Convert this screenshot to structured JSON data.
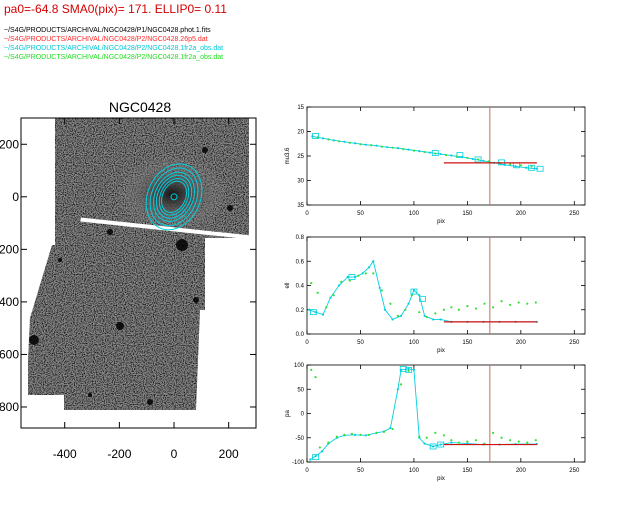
{
  "header": {
    "params": "pa0=-64.8  SMA0(pix)= 171.  ELLIP0= 0.11",
    "files": [
      {
        "text": "~/S4G/PRODUCTS/ARCHIVAL/NGC0428/P1/NGC0428.phot.1.fits",
        "color": "#000000"
      },
      {
        "text": "~/S4G/PRODUCTS/ARCHIVAL/NGC0428/P2/NGC0428.26p5.dat",
        "color": "#ff2a2a"
      },
      {
        "text": "~/S4G/PRODUCTS/ARCHIVAL/NGC0428/P2/NGC0428.1fr2a_obs.dat",
        "color": "#00c8d8"
      },
      {
        "text": "~/S4G/PRODUCTS/ARCHIVAL/NGC0428/P2/NGC0428.1fr2a_obs.dat",
        "color": "#22dd22"
      }
    ]
  },
  "colors": {
    "cyan": "#00d0e0",
    "green": "#33e033",
    "red": "#d01010",
    "vline": "#c87060",
    "axis": "#000000"
  },
  "chart_data": [
    {
      "type": "image",
      "title": "NGC0428",
      "xlim": [
        -560,
        300
      ],
      "ylim": [
        -880,
        300
      ],
      "x_ticks": [
        -400,
        -200,
        0,
        200
      ],
      "y_ticks": [
        200,
        0,
        -200,
        -400,
        -600,
        -800
      ],
      "y_tick_labels": [
        "200",
        "0",
        "200",
        "400",
        "600",
        "800"
      ],
      "isophote_contours": [
        {
          "a": 60,
          "b": 42
        },
        {
          "a": 70,
          "b": 50
        },
        {
          "a": 82,
          "b": 60
        },
        {
          "a": 94,
          "b": 70
        },
        {
          "a": 110,
          "b": 82
        },
        {
          "a": 125,
          "b": 96
        }
      ],
      "isophote_pa_deg": -65
    },
    {
      "type": "scatter",
      "ylabel": "mu3.6",
      "xlabel": "pix",
      "xlim": [
        0,
        260
      ],
      "ylim": [
        35,
        15
      ],
      "x_ticks": [
        0,
        50,
        100,
        150,
        200,
        250
      ],
      "y_ticks": [
        15,
        20,
        25,
        30,
        35
      ],
      "vline_x": 171,
      "series": [
        {
          "color_key": "cyan",
          "style": "line",
          "x": [
            5,
            15,
            25,
            35,
            45,
            55,
            65,
            75,
            85,
            95,
            105,
            115,
            125,
            135,
            145,
            155,
            165,
            175,
            185,
            195,
            205,
            215
          ],
          "y": [
            21.0,
            21.4,
            21.8,
            22.1,
            22.4,
            22.7,
            22.9,
            23.2,
            23.4,
            23.7,
            24.0,
            24.3,
            24.6,
            24.9,
            25.2,
            25.6,
            26.0,
            26.4,
            26.8,
            27.1,
            27.4,
            27.6
          ]
        },
        {
          "color_key": "cyan",
          "style": "box",
          "x": [
            8,
            120,
            143,
            160,
            182,
            196,
            210,
            218
          ],
          "y": [
            20.9,
            24.4,
            24.8,
            25.7,
            26.3,
            26.9,
            27.4,
            27.6
          ]
        },
        {
          "color_key": "green",
          "style": "dot",
          "x": [
            10,
            20,
            30,
            40,
            50,
            60,
            70,
            80,
            90,
            100,
            110,
            120,
            130,
            140,
            150,
            160,
            170,
            180,
            190,
            200,
            210
          ],
          "y": [
            21.2,
            21.6,
            22.0,
            22.3,
            22.6,
            22.8,
            23.1,
            23.3,
            23.6,
            23.9,
            24.2,
            24.5,
            24.8,
            25.1,
            25.4,
            25.7,
            26.1,
            26.4,
            26.7,
            26.9,
            27.1
          ]
        },
        {
          "color_key": "red",
          "style": "line",
          "x": [
            128,
            215
          ],
          "y": [
            26.4,
            26.4
          ]
        }
      ]
    },
    {
      "type": "scatter",
      "ylabel": "ell",
      "xlabel": "pix",
      "xlim": [
        0,
        260
      ],
      "ylim": [
        0.0,
        0.8
      ],
      "x_ticks": [
        0,
        50,
        100,
        150,
        200,
        250
      ],
      "y_ticks": [
        0.0,
        0.2,
        0.4,
        0.6,
        0.8
      ],
      "y_tick_labels": [
        "0.0",
        "0.2",
        "0.4",
        "0.6",
        "0.8"
      ],
      "vline_x": 171,
      "series": [
        {
          "color_key": "cyan",
          "style": "line",
          "x": [
            2,
            8,
            15,
            22,
            30,
            38,
            45,
            52,
            58,
            62,
            68,
            73,
            80,
            88,
            95,
            100,
            105,
            110,
            118,
            125,
            135,
            150,
            165,
            180,
            195,
            215
          ],
          "y": [
            0.2,
            0.18,
            0.16,
            0.3,
            0.4,
            0.47,
            0.47,
            0.5,
            0.55,
            0.6,
            0.38,
            0.2,
            0.12,
            0.15,
            0.25,
            0.36,
            0.32,
            0.15,
            0.12,
            0.12,
            0.1,
            0.1,
            0.1,
            0.1,
            0.1,
            0.1
          ]
        },
        {
          "color_key": "cyan",
          "style": "box",
          "x": [
            6,
            42,
            100,
            108
          ],
          "y": [
            0.18,
            0.47,
            0.35,
            0.29
          ]
        },
        {
          "color_key": "green",
          "style": "dot",
          "x": [
            4,
            10,
            18,
            25,
            32,
            40,
            48,
            55,
            62,
            70,
            78,
            85,
            92,
            98,
            105,
            112,
            120,
            128,
            135,
            142,
            150,
            158,
            166,
            174,
            182,
            190,
            198,
            206,
            214
          ],
          "y": [
            0.42,
            0.34,
            0.22,
            0.32,
            0.43,
            0.44,
            0.48,
            0.5,
            0.5,
            0.36,
            0.25,
            0.15,
            0.2,
            0.32,
            0.18,
            0.14,
            0.17,
            0.2,
            0.22,
            0.2,
            0.23,
            0.21,
            0.25,
            0.22,
            0.27,
            0.24,
            0.26,
            0.25,
            0.26
          ]
        },
        {
          "color_key": "red",
          "style": "line",
          "x": [
            128,
            215
          ],
          "y": [
            0.1,
            0.1
          ]
        }
      ]
    },
    {
      "type": "scatter",
      "ylabel": "pa",
      "xlabel": "pix",
      "xlim": [
        0,
        260
      ],
      "ylim": [
        -100,
        100
      ],
      "x_ticks": [
        0,
        50,
        100,
        150,
        200,
        250
      ],
      "y_ticks": [
        -100,
        -50,
        0,
        50,
        100
      ],
      "vline_x": 171,
      "series": [
        {
          "color_key": "cyan",
          "style": "line",
          "x": [
            3,
            8,
            14,
            20,
            28,
            35,
            45,
            55,
            65,
            72,
            78,
            85,
            88,
            95,
            100,
            105,
            110,
            118,
            125,
            135,
            150,
            165,
            180,
            195,
            215
          ],
          "y": [
            -95,
            -88,
            -78,
            -62,
            -50,
            -45,
            -44,
            -45,
            -40,
            -37,
            -30,
            50,
            90,
            92,
            90,
            -50,
            -62,
            -68,
            -64,
            -60,
            -62,
            -64,
            -64,
            -63,
            -63
          ]
        },
        {
          "color_key": "cyan",
          "style": "box",
          "x": [
            8,
            90,
            95,
            118,
            125
          ],
          "y": [
            -90,
            92,
            90,
            -68,
            -64
          ]
        },
        {
          "color_key": "green",
          "style": "dot",
          "x": [
            4,
            8,
            12,
            20,
            28,
            35,
            42,
            50,
            58,
            65,
            72,
            80,
            88,
            95,
            105,
            112,
            120,
            128,
            135,
            142,
            150,
            158,
            166,
            174,
            182,
            190,
            198,
            206,
            214
          ],
          "y": [
            90,
            75,
            -70,
            -60,
            -48,
            -44,
            -42,
            -44,
            -44,
            -40,
            -38,
            -32,
            60,
            88,
            -48,
            -50,
            -40,
            -45,
            -55,
            -60,
            -58,
            -55,
            -62,
            -40,
            -50,
            -55,
            -58,
            -60,
            -55
          ]
        },
        {
          "color_key": "red",
          "style": "line",
          "x": [
            128,
            215
          ],
          "y": [
            -64,
            -64
          ]
        }
      ]
    }
  ]
}
